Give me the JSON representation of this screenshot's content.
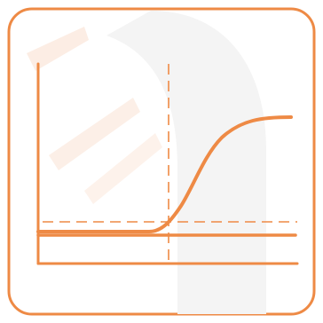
{
  "icon": {
    "name": "threshold-curve-chart-icon",
    "accent": "#EE8A45",
    "watermark_color": "#F3F3F3",
    "watermark_tint": "#FCEBE1",
    "frame_fill": "#FFFFFF"
  },
  "chart_data": {
    "type": "line",
    "title": "",
    "xlabel": "",
    "ylabel": "",
    "grid": false,
    "legend": "none",
    "series": [
      {
        "kind": "sigmoid",
        "baseline": 0,
        "plateau": 1,
        "threshold_x": 0.53
      }
    ],
    "reference_lines": [
      {
        "orientation": "vertical",
        "style": "dashed"
      },
      {
        "orientation": "horizontal",
        "style": "dashed"
      },
      {
        "orientation": "horizontal",
        "style": "solid"
      }
    ]
  }
}
